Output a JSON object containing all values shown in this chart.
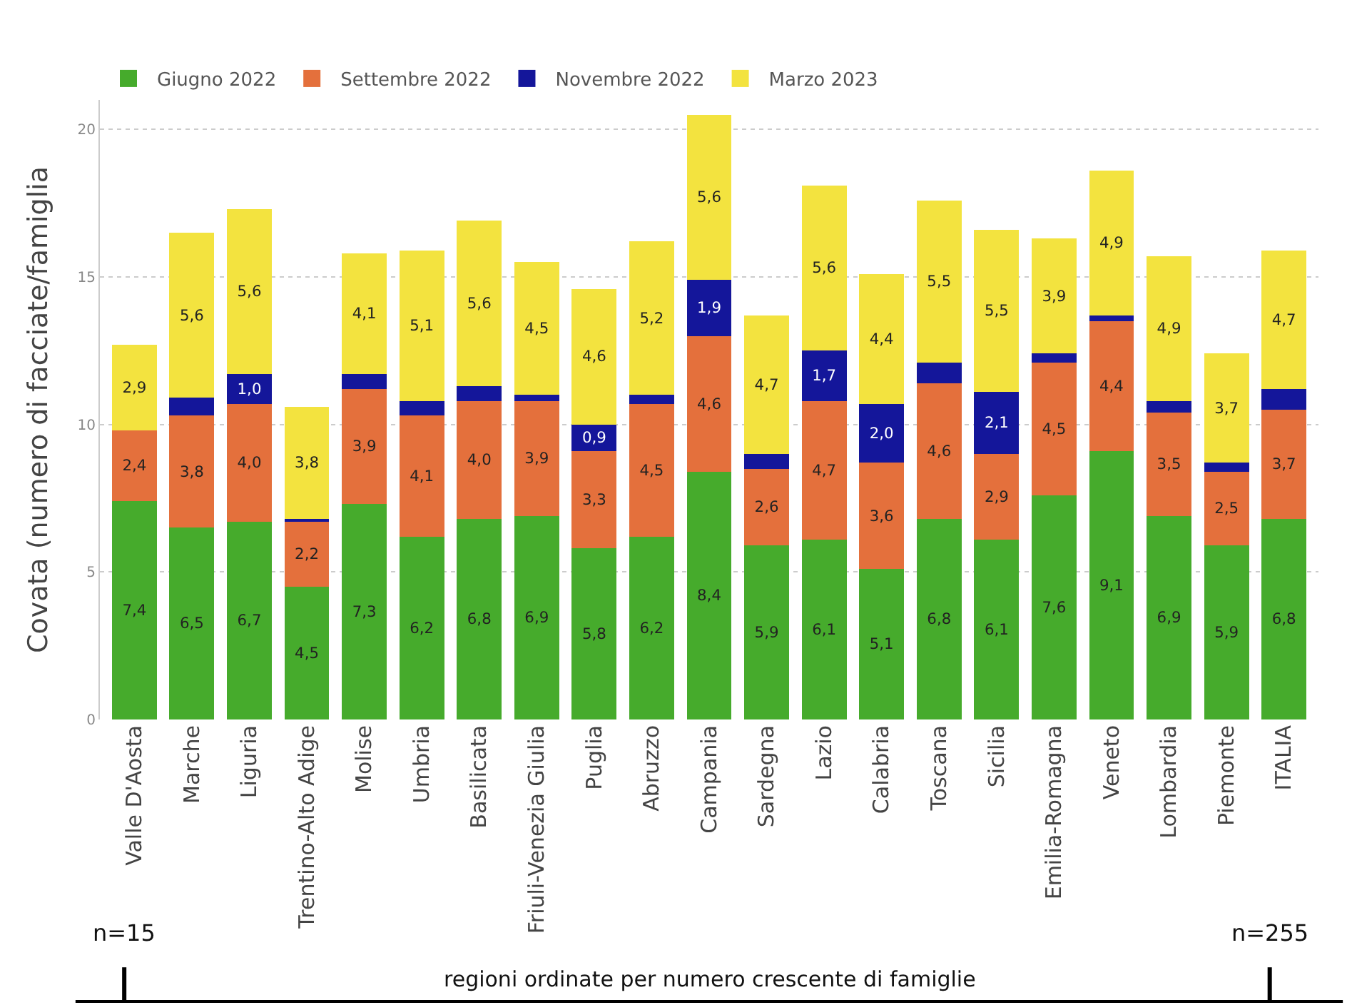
{
  "chart_data": {
    "type": "bar",
    "stacked": true,
    "ylabel": "Covata (numero di facciate/famiglia",
    "xlabel": "regioni ordinate per numero crescente di famiglie",
    "categories": [
      "Valle D'Aosta",
      "Marche",
      "Liguria",
      "Trentino-Alto Adige",
      "Molise",
      "Umbria",
      "Basilicata",
      "Friuli-Venezia Giulia",
      "Puglia",
      "Abruzzo",
      "Campania",
      "Sardegna",
      "Lazio",
      "Calabria",
      "Toscana",
      "Sicilia",
      "Emilia-Romagna",
      "Veneto",
      "Lombardia",
      "Piemonte",
      "ITALIA"
    ],
    "series": [
      {
        "name": "Giugno 2022",
        "color": "#46ab2c",
        "values": [
          7.4,
          6.5,
          6.7,
          4.5,
          7.3,
          6.2,
          6.8,
          6.9,
          5.8,
          6.2,
          8.4,
          5.9,
          6.1,
          5.1,
          6.8,
          6.1,
          7.6,
          9.1,
          6.9,
          5.9,
          6.8
        ],
        "value_labels": [
          "7,4",
          "6,5",
          "6,7",
          "4,5",
          "7,3",
          "6,2",
          "6,8",
          "6,9",
          "5,8",
          "6,2",
          "8,4",
          "5,9",
          "6,1",
          "5,1",
          "6,8",
          "6,1",
          "7,6",
          "9,1",
          "6,9",
          "5,9",
          "6,8"
        ]
      },
      {
        "name": "Settembre 2022",
        "color": "#e4703c",
        "values": [
          2.4,
          3.8,
          4.0,
          2.2,
          3.9,
          4.1,
          4.0,
          3.9,
          3.3,
          4.5,
          4.6,
          2.6,
          4.7,
          3.6,
          4.6,
          2.9,
          4.5,
          4.4,
          3.5,
          2.5,
          3.7
        ],
        "value_labels": [
          "2,4",
          "3,8",
          "4,0",
          "2,2",
          "3,9",
          "4,1",
          "4,0",
          "3,9",
          "3,3",
          "4,5",
          "4,6",
          "2,6",
          "4,7",
          "3,6",
          "4,6",
          "2,9",
          "4,5",
          "4,4",
          "3,5",
          "2,5",
          "3,7"
        ]
      },
      {
        "name": "Novembre 2022",
        "color": "#14169a",
        "values": [
          0,
          0.6,
          1.0,
          0.1,
          0.5,
          0.5,
          0.5,
          0.2,
          0.9,
          0.3,
          1.9,
          0.5,
          1.7,
          2.0,
          0.7,
          2.1,
          0.3,
          0.2,
          0.4,
          0.3,
          0.7
        ],
        "value_labels": [
          null,
          null,
          "1,0",
          null,
          null,
          null,
          null,
          null,
          "0,9",
          null,
          "1,9",
          null,
          "1,7",
          "2,0",
          null,
          "2,1",
          null,
          null,
          null,
          null,
          null
        ]
      },
      {
        "name": "Marzo 2023",
        "color": "#f3e33f",
        "values": [
          2.9,
          5.6,
          5.6,
          3.8,
          4.1,
          5.1,
          5.6,
          4.5,
          4.6,
          5.2,
          5.6,
          4.7,
          5.6,
          4.4,
          5.5,
          5.5,
          3.9,
          4.9,
          4.9,
          3.7,
          4.7
        ],
        "value_labels": [
          "2,9",
          "5,6",
          "5,6",
          "3,8",
          "4,1",
          "5,1",
          "5,6",
          "4,5",
          "4,6",
          "5,2",
          "5,6",
          "4,7",
          "5,6",
          "4,4",
          "5,5",
          "5,5",
          "3,9",
          "4,9",
          "4,9",
          "3,7",
          "4,7"
        ]
      }
    ],
    "ylim": [
      0,
      21
    ],
    "yticks": [
      0,
      5,
      10,
      15,
      20
    ],
    "grid": "y",
    "legend": "top left",
    "annotations": [
      "n=15",
      "n=255"
    ]
  }
}
